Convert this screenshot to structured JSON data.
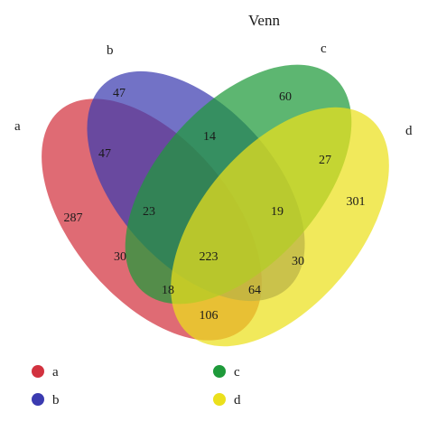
{
  "title": "Venn",
  "sets": [
    {
      "id": "a",
      "label": "a",
      "color": "#d2323f"
    },
    {
      "id": "b",
      "label": "b",
      "color": "#3b3bb0"
    },
    {
      "id": "c",
      "label": "c",
      "color": "#1e9a3a"
    },
    {
      "id": "d",
      "label": "d",
      "color": "#ebe01c"
    }
  ],
  "regions": [
    {
      "sets": "b",
      "value": "47"
    },
    {
      "sets": "c",
      "value": "60"
    },
    {
      "sets": "b,c",
      "value": "14"
    },
    {
      "sets": "a,b",
      "value": "47"
    },
    {
      "sets": "c,d",
      "value": "27"
    },
    {
      "sets": "a",
      "value": "287"
    },
    {
      "sets": "a,b,c",
      "value": "23"
    },
    {
      "sets": "b,c,d",
      "value": "19"
    },
    {
      "sets": "d",
      "value": "301"
    },
    {
      "sets": "a,c",
      "value": "30"
    },
    {
      "sets": "a,b,c,d",
      "value": "223"
    },
    {
      "sets": "b,d",
      "value": "30"
    },
    {
      "sets": "a,c,d",
      "value": "18"
    },
    {
      "sets": "a,b,d",
      "value": "64"
    },
    {
      "sets": "a,d",
      "value": "106"
    }
  ],
  "legend": [
    {
      "label": "a",
      "color": "#d2323f"
    },
    {
      "label": "c",
      "color": "#1e9a3a"
    },
    {
      "label": "b",
      "color": "#3b3bb0"
    },
    {
      "label": "d",
      "color": "#ebe01c"
    }
  ]
}
